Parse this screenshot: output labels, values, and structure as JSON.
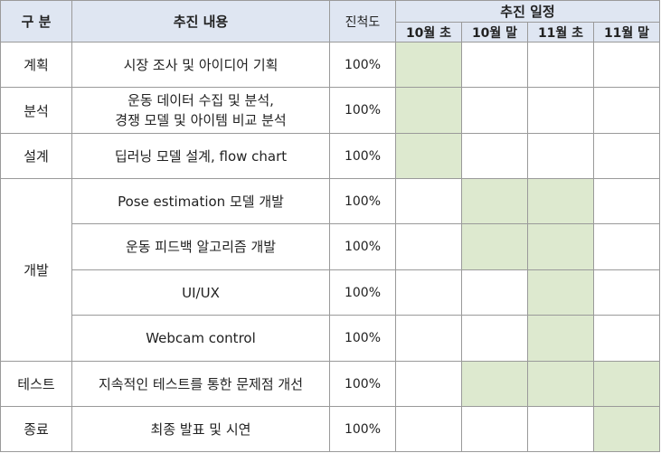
{
  "header": {
    "category": "구 분",
    "content": "추진 내용",
    "progress": "진척도",
    "schedule": "추진 일정",
    "weeks": [
      "10월 초",
      "10월 말",
      "11월 초",
      "11월 말"
    ]
  },
  "colors": {
    "header_bg": "#dfe6f2",
    "filled": "#dde9cf",
    "border": "#9a9a9a"
  },
  "rows": [
    {
      "category": "계획",
      "task": [
        "시장 조사 및 아이디어 기획"
      ],
      "progress": "100%",
      "schedule": [
        1,
        0,
        0,
        0
      ]
    },
    {
      "category": "분석",
      "task": [
        "운동 데이터 수집 및 분석,",
        "경쟁 모델 및 아이템 비교 분석"
      ],
      "progress": "100%",
      "schedule": [
        1,
        0,
        0,
        0
      ]
    },
    {
      "category": "설계",
      "task": [
        "딥러닝 모델 설계, flow chart"
      ],
      "progress": "100%",
      "schedule": [
        1,
        0,
        0,
        0
      ]
    },
    {
      "category": "개발",
      "task": [
        "Pose estimation 모델 개발"
      ],
      "progress": "100%",
      "schedule": [
        0,
        1,
        1,
        0
      ]
    },
    {
      "category": "",
      "task": [
        "운동 피드백 알고리즘 개발"
      ],
      "progress": "100%",
      "schedule": [
        0,
        1,
        1,
        0
      ]
    },
    {
      "category": "",
      "task": [
        "UI/UX"
      ],
      "progress": "100%",
      "schedule": [
        0,
        0,
        1,
        0
      ]
    },
    {
      "category": "",
      "task": [
        "Webcam control"
      ],
      "progress": "100%",
      "schedule": [
        0,
        0,
        1,
        0
      ]
    },
    {
      "category": "테스트",
      "task": [
        "지속적인 테스트를 통한 문제점 개선"
      ],
      "progress": "100%",
      "schedule": [
        0,
        1,
        1,
        1
      ]
    },
    {
      "category": "종료",
      "task": [
        "최종 발표 및 시연"
      ],
      "progress": "100%",
      "schedule": [
        0,
        0,
        0,
        1
      ]
    }
  ]
}
